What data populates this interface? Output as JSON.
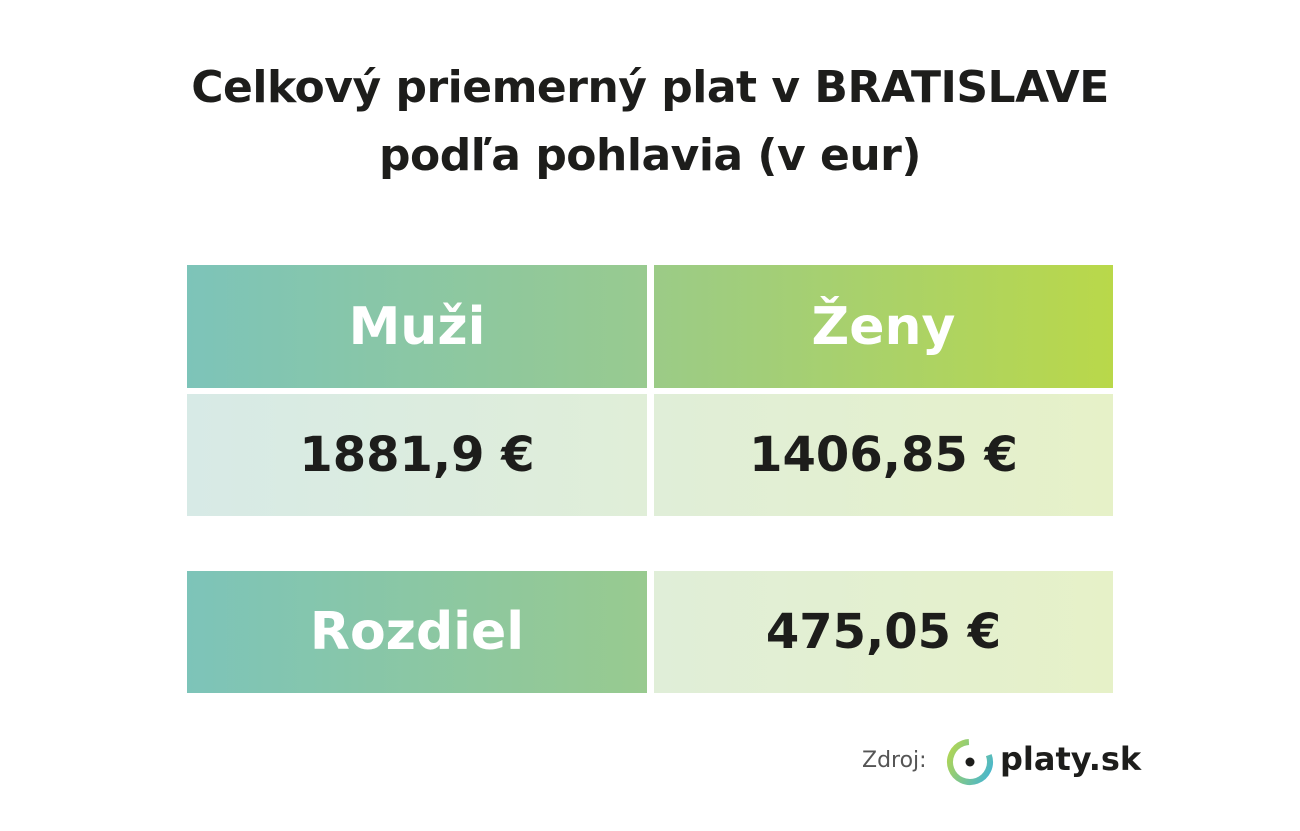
{
  "header": {
    "title_lines": [
      "Celkový priemerný plat v BRATISLAVE",
      "podľa pohlavia (v eur)"
    ]
  },
  "table": {
    "headers": [
      "Muži",
      "Ženy"
    ],
    "values": [
      "1881,9 €",
      "1406,85 €"
    ]
  },
  "difference": {
    "label": "Rozdiel",
    "value": "475,05 €"
  },
  "footer": {
    "source_label": "Zdroj:",
    "logo_text": "platy.sk"
  }
}
